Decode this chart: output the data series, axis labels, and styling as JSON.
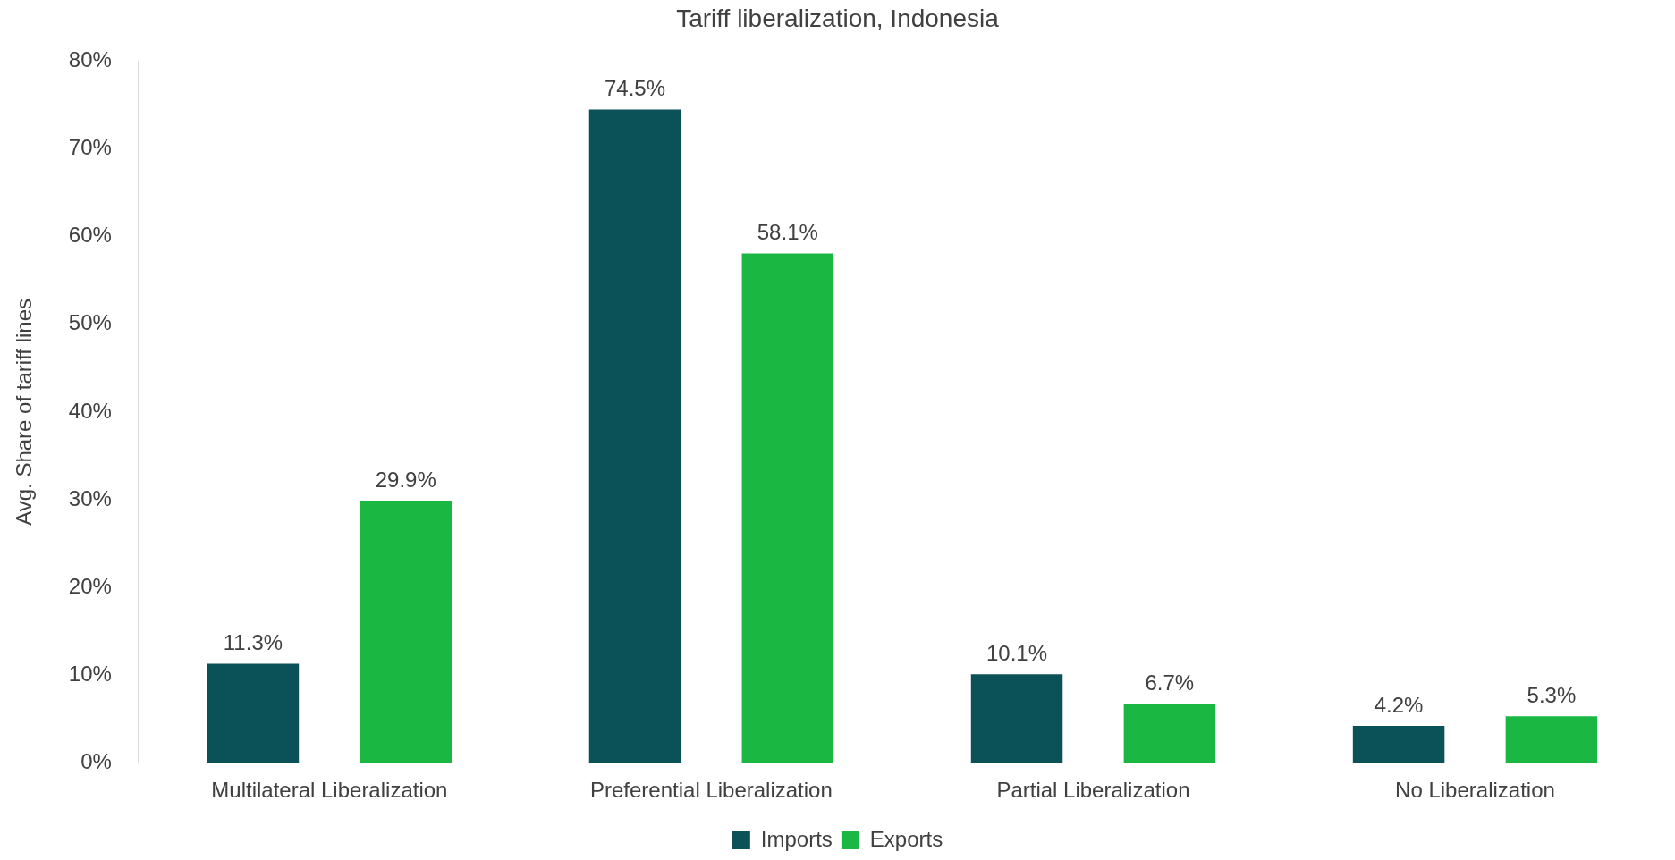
{
  "chart_data": {
    "type": "bar",
    "title": "Tariff liberalization, Indonesia",
    "ylabel": "Avg. Share of tariff lines",
    "categories": [
      "Multilateral Liberalization",
      "Preferential Liberalization",
      "Partial Liberalization",
      "No Liberalization"
    ],
    "series": [
      {
        "name": "Imports",
        "color": "#0b5158",
        "values": [
          11.3,
          74.5,
          10.1,
          4.2
        ],
        "value_labels": [
          "11.3%",
          "74.5%",
          "10.1%",
          "4.2%"
        ]
      },
      {
        "name": "Exports",
        "color": "#1ab843",
        "values": [
          29.9,
          58.1,
          6.7,
          5.3
        ],
        "value_labels": [
          "29.9%",
          "58.1%",
          "6.7%",
          "5.3%"
        ]
      }
    ],
    "ylim": [
      0,
      80
    ],
    "yticks": [
      {
        "value": 0,
        "label": "0%"
      },
      {
        "value": 10,
        "label": "10%"
      },
      {
        "value": 20,
        "label": "20%"
      },
      {
        "value": 30,
        "label": "30%"
      },
      {
        "value": 40,
        "label": "40%"
      },
      {
        "value": 50,
        "label": "50%"
      },
      {
        "value": 60,
        "label": "60%"
      },
      {
        "value": 70,
        "label": "70%"
      },
      {
        "value": 80,
        "label": "80%"
      }
    ],
    "grid": false,
    "legend": "bottom"
  }
}
